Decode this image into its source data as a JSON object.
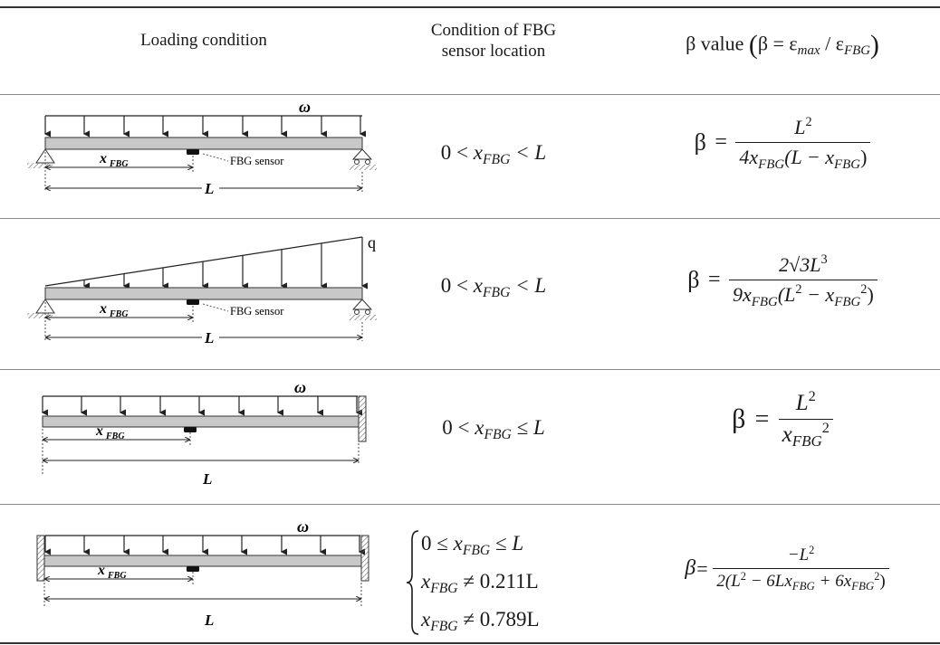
{
  "table": {
    "headers": {
      "loading": "Loading condition",
      "condition_line1": "Condition of FBG",
      "condition_line2": "sensor location",
      "beta_label": "β value",
      "beta_def_lhs": "β = ε",
      "beta_def_max": "max",
      "beta_def_slash": " / ε",
      "beta_def_fbg": "FBG"
    },
    "diagram_labels": {
      "omega": "ω",
      "q": "q",
      "x_fbg": "x",
      "x_fbg_sub": "FBG",
      "fbg_sensor": "FBG sensor",
      "L": "L"
    },
    "rows": [
      {
        "condition": {
          "lhs": "0 <",
          "var": "x",
          "sub": "FBG",
          "rhs": "< L"
        },
        "beta": {
          "sym": "β",
          "eq": "=",
          "num": "L",
          "num_sup": "2",
          "den_pre": "4x",
          "den_sub": "FBG",
          "den_mid": "(L − x",
          "den_sub2": "FBG",
          "den_post": ")"
        }
      },
      {
        "condition": {
          "lhs": "0 <",
          "var": "x",
          "sub": "FBG",
          "rhs": "< L"
        },
        "beta": {
          "sym": "β",
          "eq": "=",
          "num": "2√3L",
          "num_sup": "3",
          "den_pre": "9x",
          "den_sub": "FBG",
          "den_mid": "(L",
          "den_sup": "2",
          "den_mid2": " − x",
          "den_sub2": "FBG",
          "den_sup2": "2",
          "den_post": ")"
        }
      },
      {
        "condition": {
          "lhs": "0 <",
          "var": "x",
          "sub": "FBG",
          "rhs": "≤ L"
        },
        "beta": {
          "sym": "β",
          "eq": "=",
          "num": "L",
          "num_sup": "2",
          "den_pre": "x",
          "den_sub": "FBG",
          "den_sup": "2"
        }
      },
      {
        "conditions": [
          {
            "lhs": "0 ≤",
            "var": "x",
            "sub": "FBG",
            "rhs": "≤ L"
          },
          {
            "lhs": "",
            "var": "x",
            "sub": "FBG",
            "rhs": "≠ 0.211L"
          },
          {
            "lhs": "",
            "var": "x",
            "sub": "FBG",
            "rhs": "≠ 0.789L"
          }
        ],
        "beta": {
          "sym": "β",
          "eq": "=",
          "num": "−L",
          "num_sup": "2",
          "den_pre": "2(L",
          "den_sup": "2",
          "den_mid": " − 6Lx",
          "den_sub": "FBG",
          "den_mid2": " + 6x",
          "den_sub2": "FBG",
          "den_sup2": "2",
          "den_post": ")"
        }
      }
    ]
  }
}
